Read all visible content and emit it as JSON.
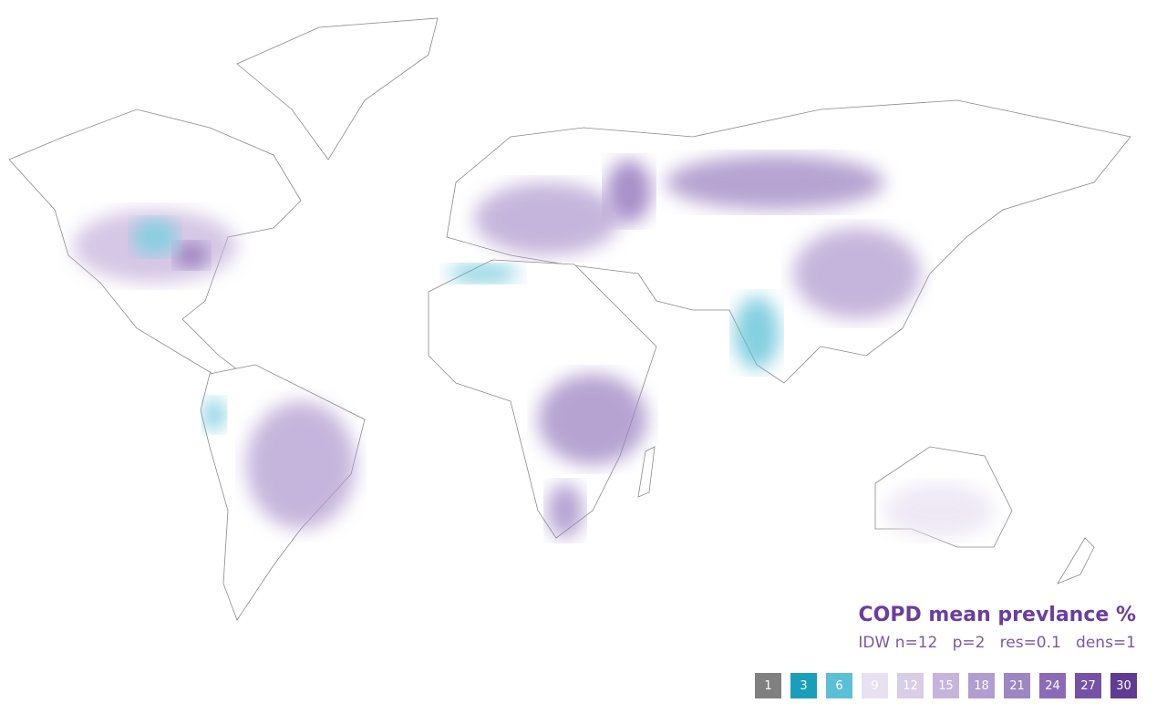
{
  "legend": {
    "title": "COPD mean prevlance %",
    "subtitle": "IDW n=12   p=2   res=0.1   dens=1",
    "bins": [
      {
        "value": 1,
        "color": "#808080"
      },
      {
        "value": 3,
        "color": "#1a9fba"
      },
      {
        "value": 6,
        "color": "#5bc0d6"
      },
      {
        "value": 9,
        "color": "#e8e1f1"
      },
      {
        "value": 12,
        "color": "#d9cde8"
      },
      {
        "value": 15,
        "color": "#c7b4dd"
      },
      {
        "value": 18,
        "color": "#b29dd0"
      },
      {
        "value": 21,
        "color": "#9e85c3"
      },
      {
        "value": 24,
        "color": "#8b6bb7"
      },
      {
        "value": 27,
        "color": "#7652a7"
      },
      {
        "value": 30,
        "color": "#5f3b93"
      }
    ]
  }
}
